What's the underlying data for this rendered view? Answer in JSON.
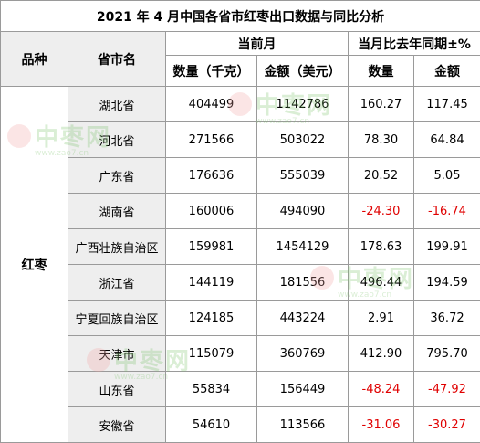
{
  "title": "2021 年 4 月中国各省市红枣出口数据与同比分析",
  "headers": {
    "variety": "品种",
    "province": "省市名",
    "current_month": "当前月",
    "yoy": "当月比去年同期±%",
    "qty": "数量（千克）",
    "amount": "金额（美元）",
    "yoy_qty": "数量",
    "yoy_amount": "金额"
  },
  "variety": "红枣",
  "rows": [
    {
      "province": "湖北省",
      "qty": "404499",
      "amount": "1142786",
      "yoy_qty": "160.27",
      "yoy_amount": "117.45"
    },
    {
      "province": "河北省",
      "qty": "271566",
      "amount": "503022",
      "yoy_qty": "78.30",
      "yoy_amount": "64.84"
    },
    {
      "province": "广东省",
      "qty": "176636",
      "amount": "555039",
      "yoy_qty": "20.52",
      "yoy_amount": "5.05"
    },
    {
      "province": "湖南省",
      "qty": "160006",
      "amount": "494090",
      "yoy_qty": "-24.30",
      "yoy_amount": "-16.74"
    },
    {
      "province": "广西壮族自治区",
      "qty": "159981",
      "amount": "1454129",
      "yoy_qty": "178.63",
      "yoy_amount": "199.91"
    },
    {
      "province": "浙江省",
      "qty": "144119",
      "amount": "181556",
      "yoy_qty": "496.44",
      "yoy_amount": "194.59"
    },
    {
      "province": "宁夏回族自治区",
      "qty": "124185",
      "amount": "443224",
      "yoy_qty": "2.91",
      "yoy_amount": "36.72"
    },
    {
      "province": "天津市",
      "qty": "115079",
      "amount": "360769",
      "yoy_qty": "412.90",
      "yoy_amount": "795.70"
    },
    {
      "province": "山东省",
      "qty": "55834",
      "amount": "156449",
      "yoy_qty": "-48.24",
      "yoy_amount": "-47.92"
    },
    {
      "province": "安徽省",
      "qty": "54610",
      "amount": "113566",
      "yoy_qty": "-31.06",
      "yoy_amount": "-30.27"
    }
  ],
  "colors": {
    "negative": "#e00000",
    "header_bg": "#eeeeee"
  },
  "watermark": {
    "logo_text": "中枣网",
    "url": "www.zao7.cn"
  }
}
